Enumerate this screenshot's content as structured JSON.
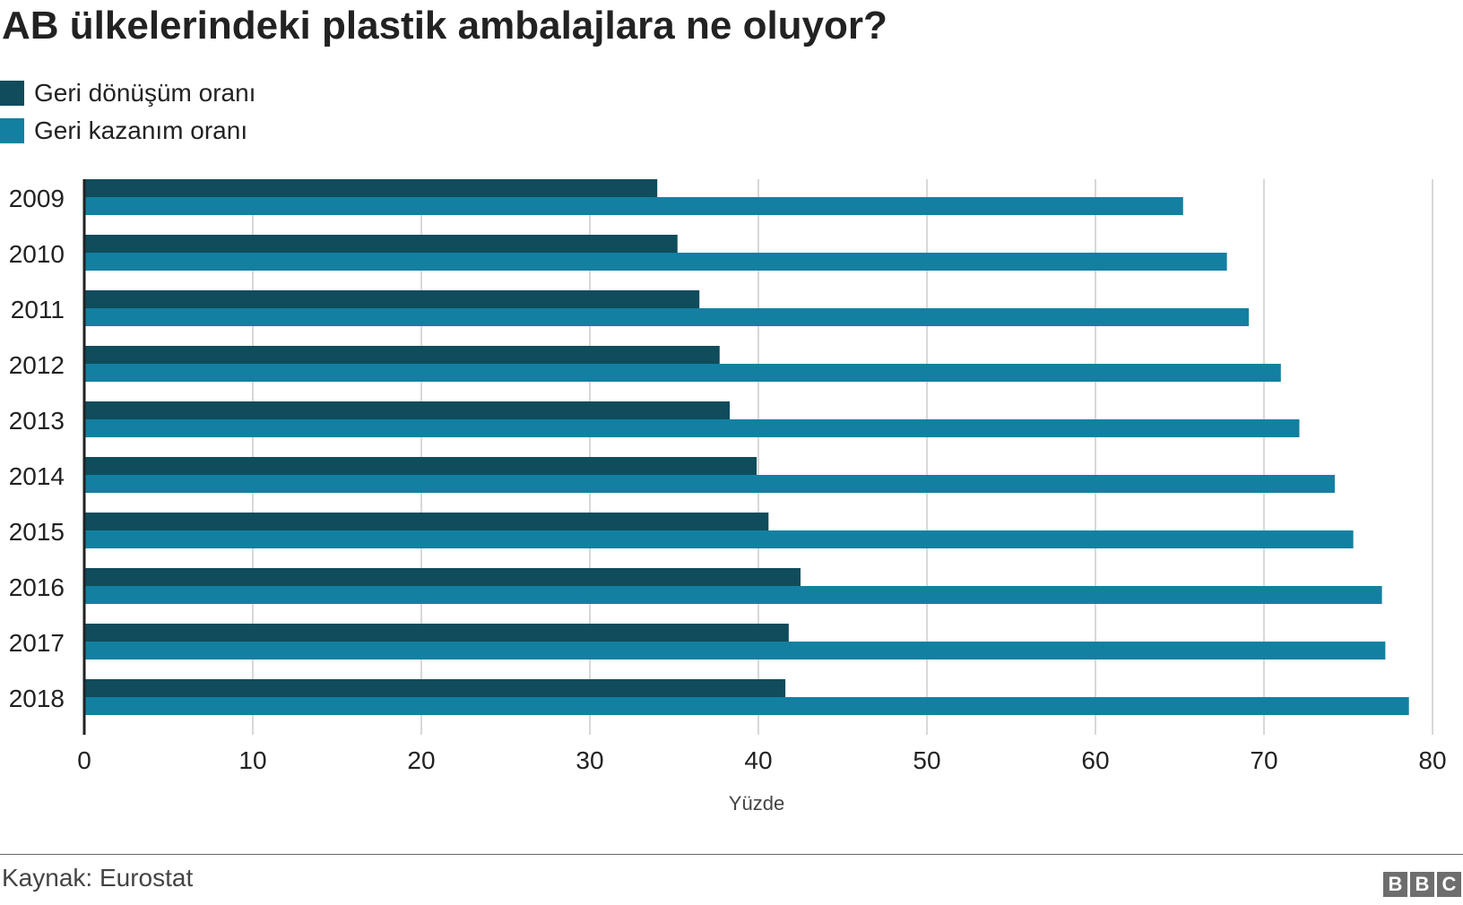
{
  "title": "AB ülkelerindeki plastik ambalajlara ne oluyor?",
  "source": "Kaynak: Eurostat",
  "logo": [
    "B",
    "B",
    "C"
  ],
  "colors": {
    "recycling": "#0f4c5c",
    "recovery": "#1380a1",
    "grid": "#cccccc",
    "axis": "#222222"
  },
  "chart_data": {
    "type": "bar",
    "orientation": "horizontal",
    "title": "AB ülkelerindeki plastik ambalajlara ne oluyor?",
    "xlabel": "Yüzde",
    "ylabel": "",
    "xlim": [
      0,
      80
    ],
    "xticks": [
      0,
      10,
      20,
      30,
      40,
      50,
      60,
      70,
      80
    ],
    "grid": "vertical",
    "legend_position": "top-left",
    "categories": [
      "2009",
      "2010",
      "2011",
      "2012",
      "2013",
      "2014",
      "2015",
      "2016",
      "2017",
      "2018"
    ],
    "series": [
      {
        "name": "Geri dönüşüm oranı",
        "color": "#0f4c5c",
        "values": [
          34.0,
          35.2,
          36.5,
          37.7,
          38.3,
          39.9,
          40.6,
          42.5,
          41.8,
          41.6
        ]
      },
      {
        "name": "Geri kazanım oranı",
        "color": "#1380a1",
        "values": [
          65.2,
          67.8,
          69.1,
          71.0,
          72.1,
          74.2,
          75.3,
          77.0,
          77.2,
          78.6
        ]
      }
    ]
  }
}
